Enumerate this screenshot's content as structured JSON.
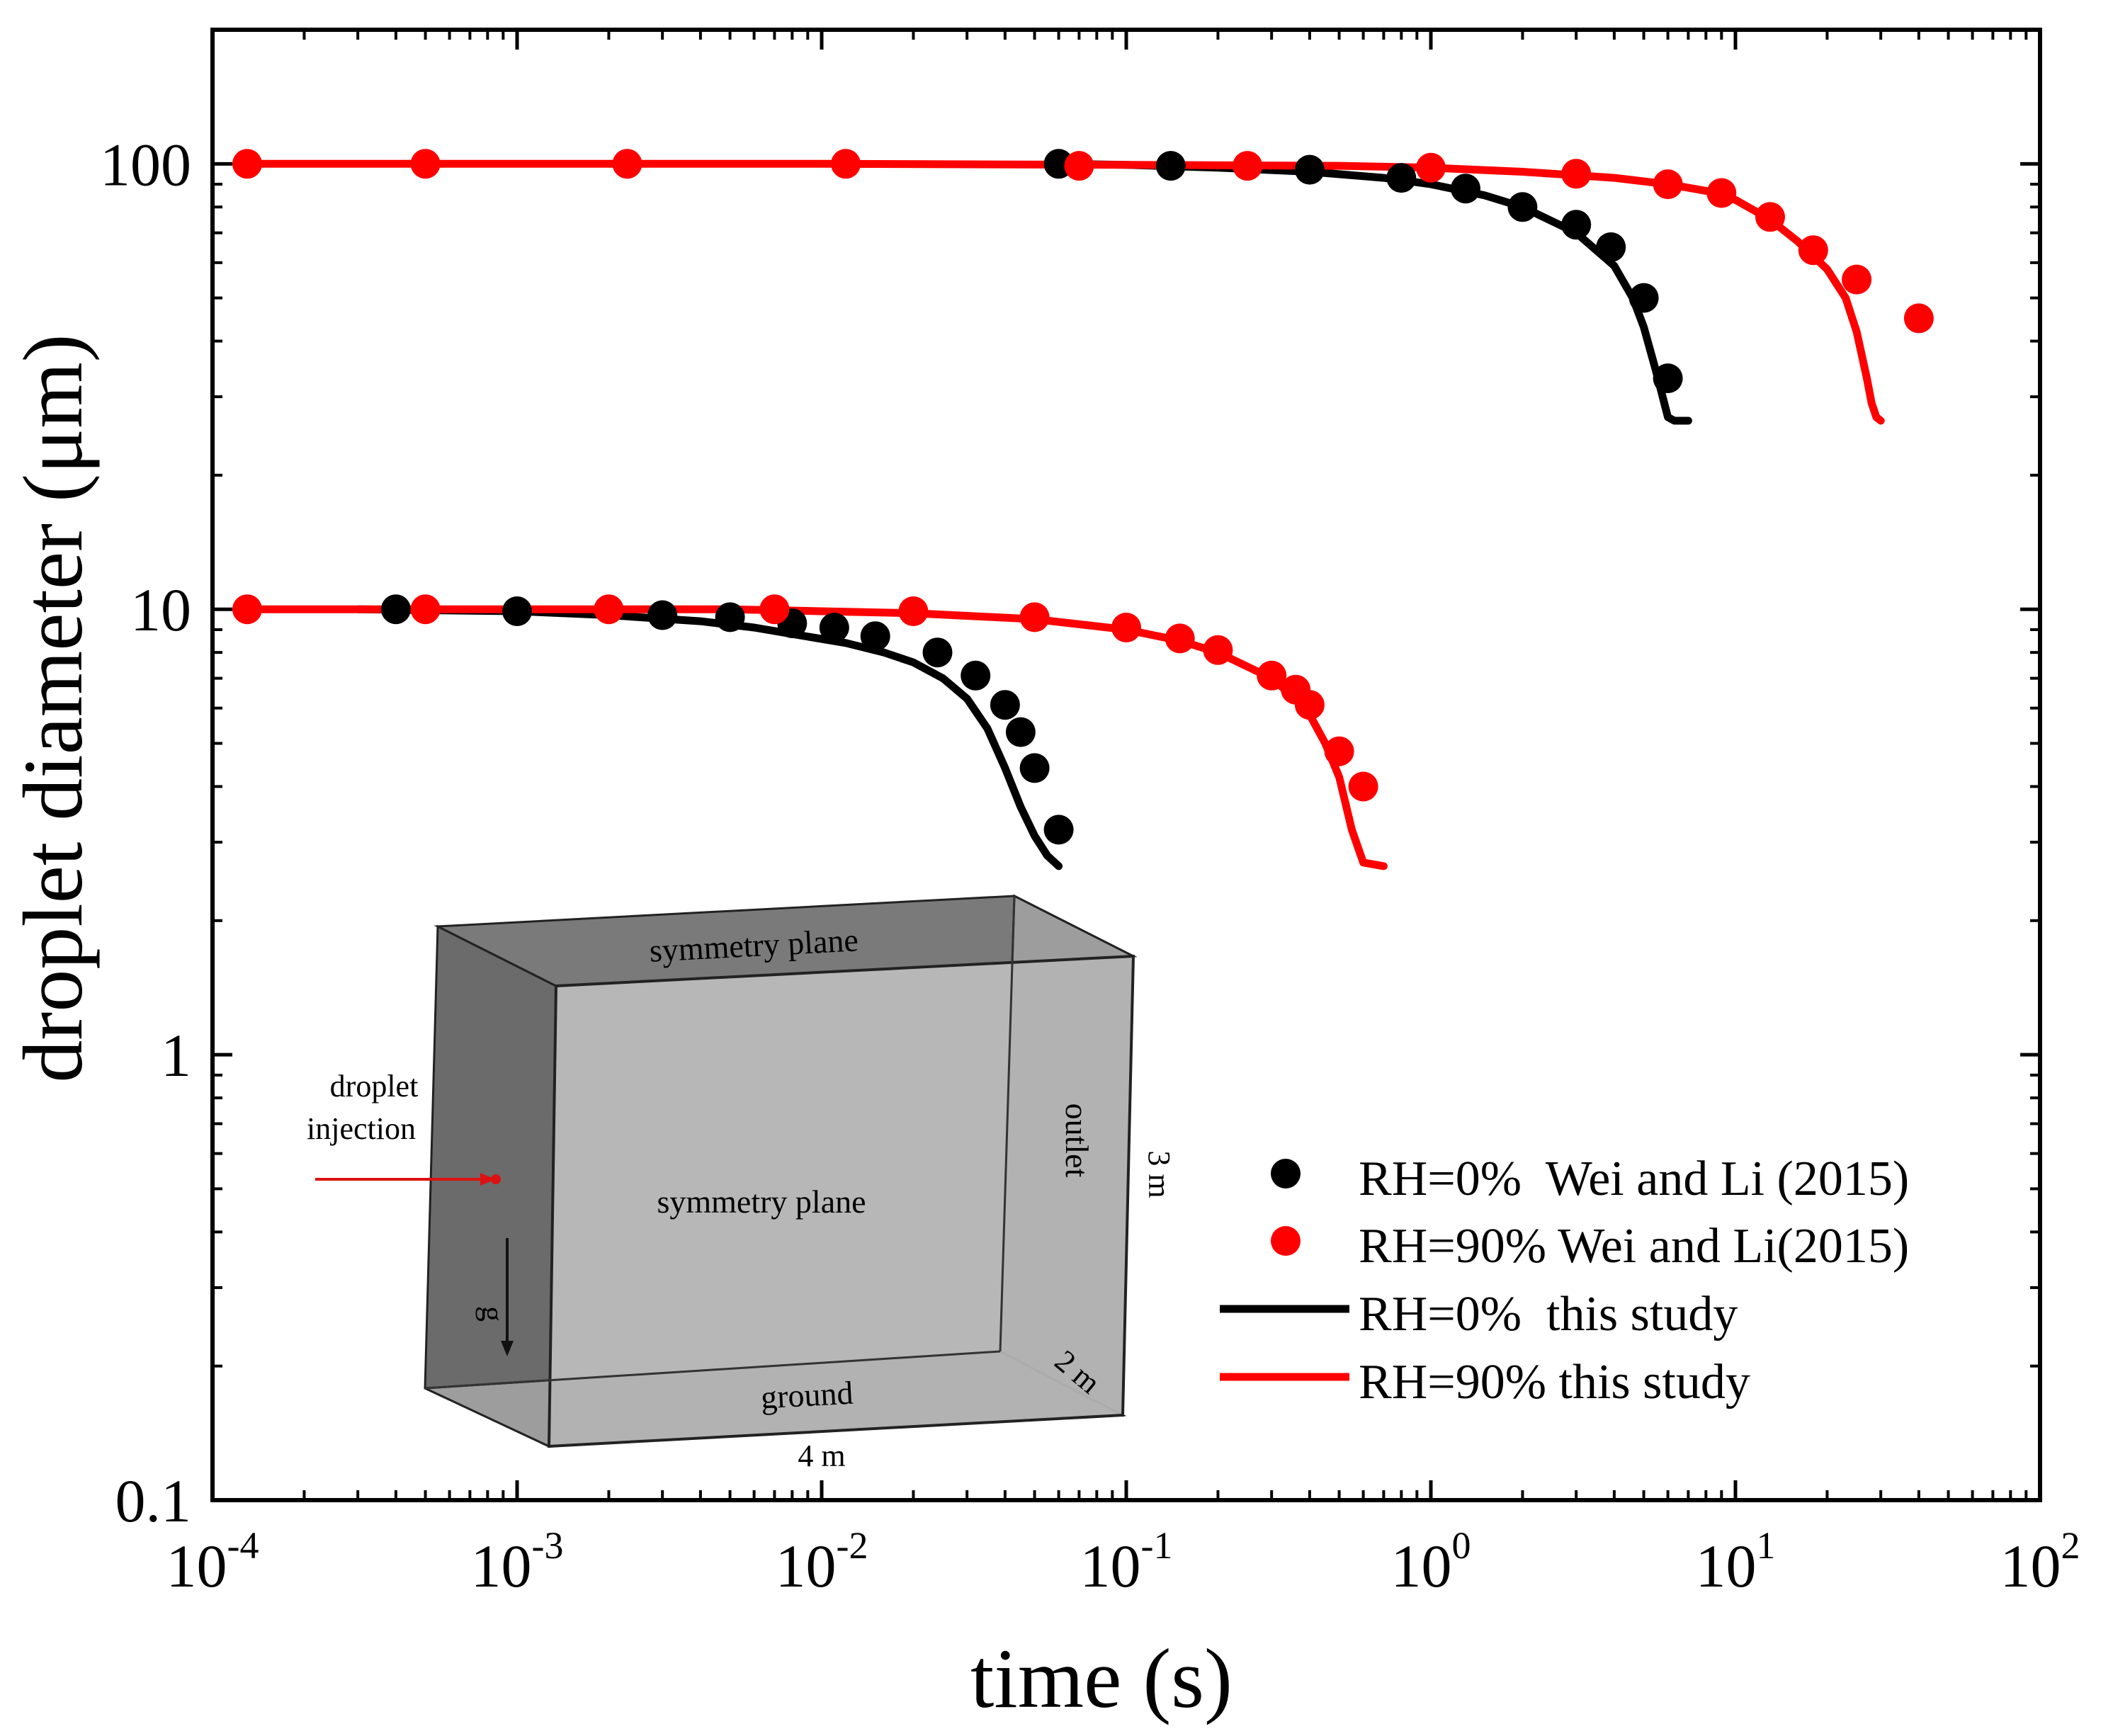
{
  "chart_data": {
    "type": "scatter",
    "title": "",
    "xlabel": "time (s)",
    "ylabel": "droplet diameter  (μm)",
    "xscale": "log",
    "yscale": "log",
    "xlim": [
      0.0001,
      100
    ],
    "ylim": [
      0.1,
      200
    ],
    "x_major_ticks": [
      0.0001,
      0.001,
      0.01,
      0.1,
      1,
      10,
      100
    ],
    "x_tick_labels": [
      {
        "base": "10",
        "exp": "-4"
      },
      {
        "base": "10",
        "exp": "-3"
      },
      {
        "base": "10",
        "exp": "-2"
      },
      {
        "base": "10",
        "exp": "-1"
      },
      {
        "base": "10",
        "exp": "0"
      },
      {
        "base": "10",
        "exp": "1"
      },
      {
        "base": "10",
        "exp": "2"
      }
    ],
    "y_major_ticks": [
      0.1,
      1,
      10,
      100
    ],
    "y_tick_labels": [
      "0.1",
      "1",
      "10",
      "100"
    ],
    "legend_position": "bottom-right",
    "series": [
      {
        "name": "RH=0%  Wei and Li (2015)",
        "kind": "points",
        "color": "#000000",
        "groups": [
          {
            "x": [
              0.06,
              0.14,
              0.4,
              0.8,
              1.3,
              2.0,
              3.0,
              3.9,
              5.0,
              6.0
            ],
            "y": [
              100,
              99,
              97,
              93,
              88,
              80,
              73,
              65,
              50,
              33
            ]
          },
          {
            "x": [
              0.0004,
              0.001,
              0.003,
              0.005,
              0.008,
              0.011,
              0.015,
              0.024,
              0.032,
              0.04,
              0.045,
              0.05,
              0.06
            ],
            "y": [
              10,
              9.9,
              9.7,
              9.6,
              9.3,
              9.1,
              8.7,
              8.0,
              7.1,
              6.1,
              5.3,
              4.4,
              3.2
            ]
          }
        ]
      },
      {
        "name": "RH=90% Wei and Li(2015)",
        "kind": "points",
        "color": "#ff0000",
        "groups": [
          {
            "x": [
              0.00013,
              0.0005,
              0.0023,
              0.012,
              0.07,
              0.25,
              1.0,
              3.0,
              6.0,
              9.0,
              13.0,
              18.0,
              25.0,
              40.0
            ],
            "y": [
              100,
              100,
              100,
              100,
              99,
              99,
              98,
              95,
              90,
              86,
              76,
              64,
              55,
              45
            ]
          },
          {
            "x": [
              0.00013,
              0.0005,
              0.002,
              0.007,
              0.02,
              0.05,
              0.1,
              0.15,
              0.2,
              0.3,
              0.36,
              0.4,
              0.5,
              0.6
            ],
            "y": [
              10,
              10,
              10,
              10,
              9.9,
              9.6,
              9.1,
              8.6,
              8.1,
              7.1,
              6.6,
              6.1,
              4.8,
              4.0
            ]
          }
        ]
      },
      {
        "name": "RH=0%  this study",
        "kind": "line",
        "color": "#000000",
        "groups": [
          {
            "x": [
              0.06,
              0.1,
              0.2,
              0.4,
              0.7,
              1.0,
              1.5,
              2.0,
              3.0,
              4.0,
              4.6,
              5.0,
              5.5,
              6.0,
              6.3,
              7.0
            ],
            "y": [
              100,
              99.5,
              98,
              96,
              93,
              90,
              85,
              80,
              70,
              59,
              50,
              43,
              34,
              27,
              26.5,
              26.5
            ]
          },
          {
            "x": [
              0.0003,
              0.001,
              0.002,
              0.004,
              0.006,
              0.008,
              0.012,
              0.016,
              0.02,
              0.025,
              0.03,
              0.035,
              0.04,
              0.045,
              0.05,
              0.055,
              0.06
            ],
            "y": [
              10,
              9.9,
              9.7,
              9.4,
              9.1,
              8.8,
              8.4,
              8.0,
              7.6,
              7.0,
              6.3,
              5.4,
              4.4,
              3.6,
              3.1,
              2.8,
              2.65
            ]
          }
        ]
      },
      {
        "name": "RH=90% this study",
        "kind": "line",
        "color": "#ff0000",
        "groups": [
          {
            "x": [
              0.00013,
              0.001,
              0.01,
              0.1,
              0.5,
              1.0,
              2.0,
              4.0,
              6.0,
              8.0,
              10.0,
              13.0,
              16.0,
              20.0,
              23.0,
              25.0,
              27.0,
              28.0,
              29.0,
              30.0
            ],
            "y": [
              100,
              100,
              100,
              99.5,
              99,
              98,
              96,
              93,
              90,
              87,
              83,
              75,
              67,
              58,
              50,
              42,
              33,
              29,
              27,
              26.5
            ]
          },
          {
            "x": [
              0.00013,
              0.001,
              0.005,
              0.01,
              0.02,
              0.05,
              0.1,
              0.15,
              0.2,
              0.3,
              0.35,
              0.4,
              0.45,
              0.5,
              0.55,
              0.6,
              0.7
            ],
            "y": [
              10,
              10,
              10,
              9.9,
              9.8,
              9.5,
              9.0,
              8.5,
              8.0,
              7.0,
              6.4,
              5.8,
              5.0,
              4.2,
              3.2,
              2.7,
              2.65
            ]
          }
        ]
      }
    ],
    "inset": {
      "top_face": "symmetry plane",
      "front_face": "symmetry plane",
      "right_face": "outlet",
      "bottom_face": "ground",
      "injection_label_1": "droplet",
      "injection_label_2": "injection",
      "gravity_label": "g",
      "dim_length": "4 m",
      "dim_height": "3 m",
      "dim_depth": "2 m",
      "face_dark": "#6b6b6b",
      "face_light": "#b3b3b3",
      "face_right": "#9d9d9d",
      "face_top": "#7a7a7a"
    }
  }
}
